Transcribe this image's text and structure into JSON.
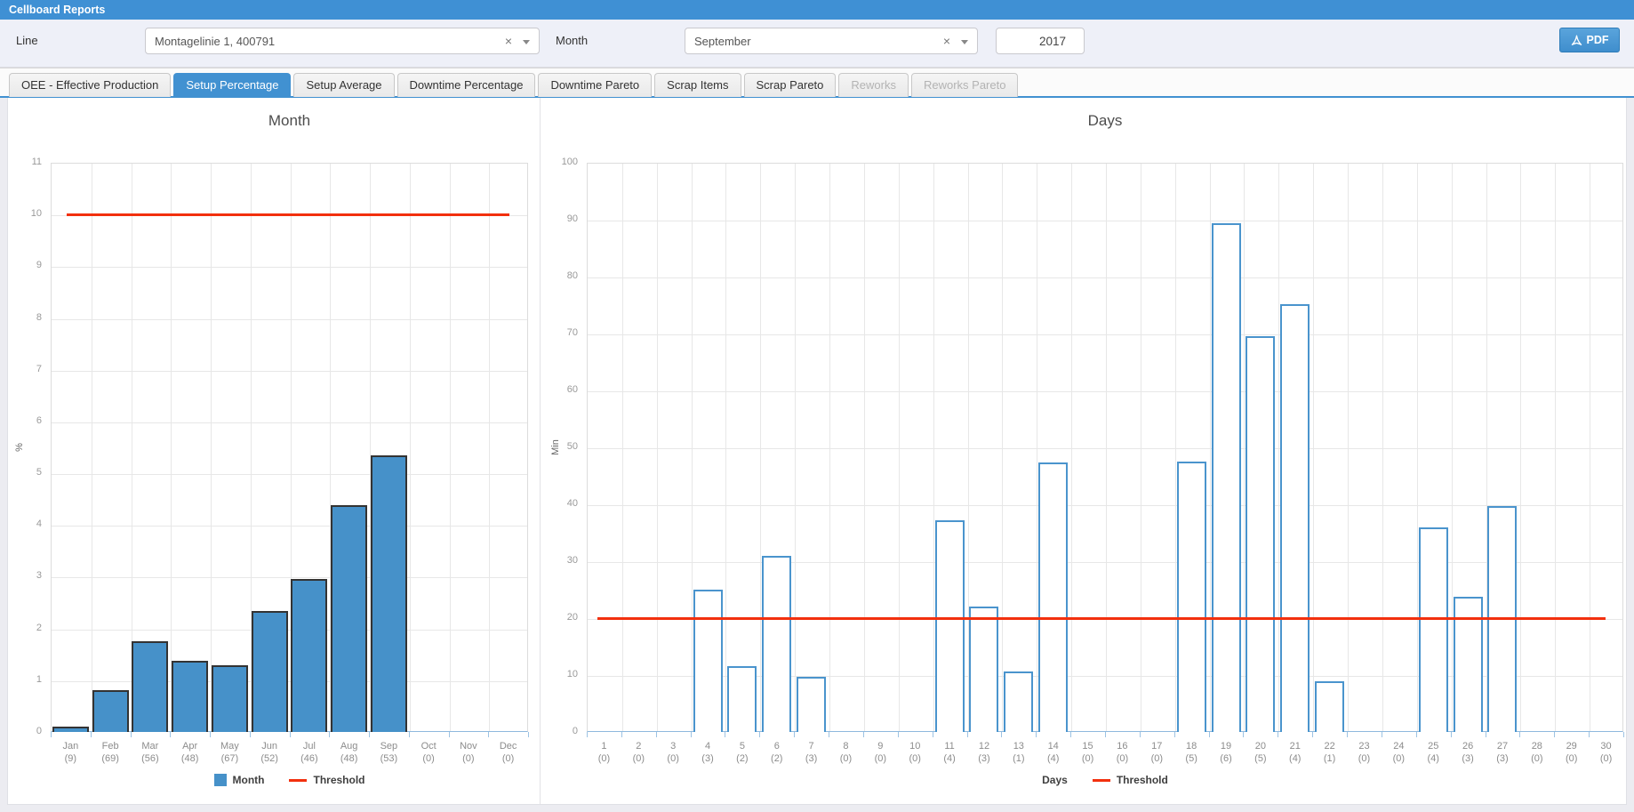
{
  "titlebar": {
    "title": "Cellboard Reports"
  },
  "filters": {
    "line_label": "Line",
    "line_value": "Montagelinie 1, 400791",
    "month_label": "Month",
    "month_value": "September",
    "year_value": "2017",
    "pdf_label": "PDF"
  },
  "tabs": [
    {
      "label": "OEE - Effective Production",
      "state": "normal"
    },
    {
      "label": "Setup Percentage",
      "state": "active"
    },
    {
      "label": "Setup Average",
      "state": "normal"
    },
    {
      "label": "Downtime Percentage",
      "state": "normal"
    },
    {
      "label": "Downtime Pareto",
      "state": "normal"
    },
    {
      "label": "Scrap Items",
      "state": "normal"
    },
    {
      "label": "Scrap Pareto",
      "state": "normal"
    },
    {
      "label": "Reworks",
      "state": "disabled"
    },
    {
      "label": "Reworks Pareto",
      "state": "disabled"
    }
  ],
  "colors": {
    "accent_blue": "#4191d1",
    "bar_fill": "#4691c9",
    "bar_outline": "#4a94cd",
    "threshold_red": "#f2300e"
  },
  "chart_data": [
    {
      "type": "bar",
      "title": "Month",
      "ylabel": "%",
      "ylim": [
        0,
        11
      ],
      "ytick_step": 1,
      "grid": true,
      "legend_position": "bottom",
      "bar_style": "filled",
      "threshold": 10,
      "categories": [
        "Jan",
        "Feb",
        "Mar",
        "Apr",
        "May",
        "Jun",
        "Jul",
        "Aug",
        "Sep",
        "Oct",
        "Nov",
        "Dec"
      ],
      "counts": [
        9,
        69,
        56,
        48,
        67,
        52,
        46,
        48,
        53,
        0,
        0,
        0
      ],
      "values": [
        0.1,
        0.8,
        1.75,
        1.38,
        1.29,
        2.34,
        2.96,
        4.39,
        5.35,
        0,
        0,
        0
      ],
      "legend": [
        {
          "label": "Month",
          "swatch": "bar"
        },
        {
          "label": "Threshold",
          "swatch": "line"
        }
      ]
    },
    {
      "type": "bar",
      "title": "Days",
      "ylabel": "Min",
      "ylim": [
        0,
        100
      ],
      "ytick_step": 10,
      "grid": true,
      "legend_position": "bottom",
      "bar_style": "outline",
      "threshold": 20,
      "categories": [
        "1",
        "2",
        "3",
        "4",
        "5",
        "6",
        "7",
        "8",
        "9",
        "10",
        "11",
        "12",
        "13",
        "14",
        "15",
        "16",
        "17",
        "18",
        "19",
        "20",
        "21",
        "22",
        "23",
        "24",
        "25",
        "26",
        "27",
        "28",
        "29",
        "30"
      ],
      "counts": [
        0,
        0,
        0,
        3,
        2,
        2,
        3,
        0,
        0,
        0,
        4,
        3,
        1,
        4,
        0,
        0,
        0,
        5,
        6,
        5,
        4,
        1,
        0,
        0,
        4,
        3,
        3,
        0,
        0,
        0
      ],
      "values": [
        0,
        0,
        0,
        25,
        11.5,
        30.9,
        9.7,
        0,
        0,
        0,
        37.2,
        22.1,
        10.7,
        47.4,
        0,
        0,
        0,
        47.5,
        89.4,
        69.6,
        75.2,
        8.9,
        0,
        0,
        35.9,
        23.8,
        39.7,
        0,
        0,
        0
      ],
      "legend": [
        {
          "label": "Days",
          "swatch": "none"
        },
        {
          "label": "Threshold",
          "swatch": "line"
        }
      ]
    }
  ]
}
